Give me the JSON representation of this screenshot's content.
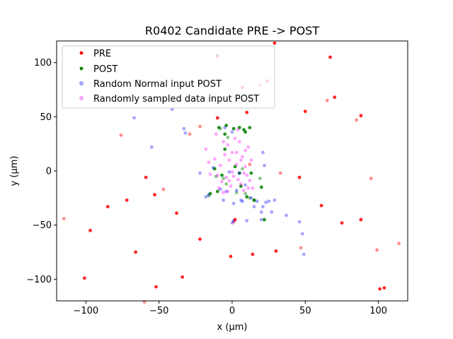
{
  "chart_data": {
    "type": "scatter",
    "title": "R0402 Candidate PRE -> POST",
    "xlabel": "x (µm)",
    "ylabel": "y (µm)",
    "xlim": [
      -120,
      120
    ],
    "ylim": [
      -120,
      120
    ],
    "xticks": [
      -100,
      -50,
      0,
      50,
      100
    ],
    "yticks": [
      -100,
      -50,
      0,
      50,
      100
    ],
    "xtick_labels": [
      "−100",
      "−50",
      "0",
      "50",
      "100"
    ],
    "ytick_labels": [
      "−100",
      "−50",
      "0",
      "50",
      "100"
    ],
    "grid": false,
    "legend_position": "top-left",
    "series": [
      {
        "name": "PRE",
        "color": "#ff0000",
        "points": [
          [
            -115,
            -44
          ],
          [
            -101,
            -99
          ],
          [
            -59,
            -6
          ],
          [
            -60,
            -121
          ],
          [
            -52,
            -107
          ],
          [
            -53,
            -22
          ],
          [
            -47,
            -17
          ],
          [
            -66,
            -75
          ],
          [
            -22,
            -63
          ],
          [
            -22,
            41
          ],
          [
            -10,
            49
          ],
          [
            -1,
            -79
          ],
          [
            1,
            -47
          ],
          [
            2,
            -45
          ],
          [
            10,
            54
          ],
          [
            12,
            6
          ],
          [
            14,
            -77
          ],
          [
            29,
            118
          ],
          [
            33,
            -2
          ],
          [
            46,
            -6
          ],
          [
            61,
            -32
          ],
          [
            65,
            65
          ],
          [
            70,
            68
          ],
          [
            75,
            -48
          ],
          [
            85,
            47
          ],
          [
            88,
            51
          ],
          [
            88,
            -45
          ],
          [
            99,
            -73
          ],
          [
            101,
            -109
          ],
          [
            104,
            -108
          ],
          [
            114,
            -67
          ],
          [
            -72,
            -27
          ],
          [
            -85,
            -33
          ],
          [
            -76,
            33
          ],
          [
            -38,
            -39
          ],
          [
            -34,
            -98
          ],
          [
            -29,
            34
          ],
          [
            -10,
            106
          ],
          [
            7,
            77
          ],
          [
            19,
            79
          ],
          [
            24,
            83
          ],
          [
            30,
            -74
          ],
          [
            47,
            -71
          ],
          [
            50,
            55
          ],
          [
            67,
            105
          ],
          [
            95,
            -7
          ],
          [
            -97,
            -55
          ]
        ]
      },
      {
        "name": "POST",
        "color": "#008000",
        "points": [
          [
            -16,
            -23
          ],
          [
            -15,
            -21
          ],
          [
            -10,
            -19
          ],
          [
            -11,
            -5
          ],
          [
            -12,
            2
          ],
          [
            -9,
            40
          ],
          [
            -6,
            -7
          ],
          [
            -5,
            34
          ],
          [
            -4,
            42
          ],
          [
            -3,
            31
          ],
          [
            1,
            39
          ],
          [
            2,
            4
          ],
          [
            3,
            -20
          ],
          [
            5,
            -2
          ],
          [
            5,
            40
          ],
          [
            7,
            2
          ],
          [
            8,
            38
          ],
          [
            9,
            36
          ],
          [
            9,
            -21
          ],
          [
            10,
            -24
          ],
          [
            12,
            40
          ],
          [
            12,
            -25
          ],
          [
            15,
            -27
          ],
          [
            15,
            -27
          ],
          [
            19,
            -7
          ],
          [
            20,
            -15
          ],
          [
            22,
            -45
          ],
          [
            -8,
            39
          ],
          [
            -5,
            20
          ],
          [
            -7,
            -4
          ],
          [
            -4,
            -12
          ],
          [
            6,
            -14
          ],
          [
            13,
            -2
          ]
        ]
      },
      {
        "name": "Random Normal input POST",
        "color": "#0000ff",
        "points": [
          [
            -55,
            22
          ],
          [
            -41,
            57
          ],
          [
            -33,
            39
          ],
          [
            -32,
            35
          ],
          [
            -22,
            -2
          ],
          [
            -18,
            -24
          ],
          [
            -16,
            -22
          ],
          [
            -13,
            3
          ],
          [
            -10,
            107
          ],
          [
            -8,
            -17
          ],
          [
            -6,
            -27
          ],
          [
            -4,
            -19
          ],
          [
            -2,
            -1
          ],
          [
            0,
            -48
          ],
          [
            1,
            -30
          ],
          [
            1,
            -46
          ],
          [
            3,
            -18
          ],
          [
            5,
            -2
          ],
          [
            6,
            -27
          ],
          [
            7,
            -28
          ],
          [
            9,
            -13
          ],
          [
            10,
            -46
          ],
          [
            13,
            -25
          ],
          [
            15,
            -33
          ],
          [
            17,
            -28
          ],
          [
            20,
            -38
          ],
          [
            20,
            -45
          ],
          [
            21,
            17
          ],
          [
            21,
            -33
          ],
          [
            22,
            5
          ],
          [
            23,
            -29
          ],
          [
            25,
            -28
          ],
          [
            27,
            -38
          ],
          [
            29,
            -27
          ],
          [
            37,
            -41
          ],
          [
            46,
            -47
          ],
          [
            48,
            -58
          ],
          [
            49,
            -77
          ],
          [
            -67,
            49
          ],
          [
            -5,
            40
          ],
          [
            0,
            36
          ]
        ]
      },
      {
        "name": "Randomly sampled data input POST",
        "color": "#ff00ff",
        "points": [
          [
            -18,
            20
          ],
          [
            -16,
            8
          ],
          [
            -15,
            -3
          ],
          [
            -12,
            11
          ],
          [
            -10,
            -4
          ],
          [
            -8,
            5
          ],
          [
            -7,
            -10
          ],
          [
            -6,
            -20
          ],
          [
            -5,
            15
          ],
          [
            -4,
            -6
          ],
          [
            -3,
            24
          ],
          [
            -2,
            10
          ],
          [
            -1,
            -14
          ],
          [
            0,
            17
          ],
          [
            1,
            -5
          ],
          [
            2,
            30
          ],
          [
            3,
            6
          ],
          [
            4,
            -8
          ],
          [
            5,
            27
          ],
          [
            6,
            -12
          ],
          [
            7,
            13
          ],
          [
            8,
            -18
          ],
          [
            9,
            19
          ],
          [
            10,
            -4
          ],
          [
            11,
            22
          ],
          [
            12,
            -9
          ],
          [
            13,
            10
          ],
          [
            14,
            -16
          ],
          [
            -9,
            -16
          ],
          [
            -6,
            27
          ],
          [
            -2,
            -9
          ],
          [
            3,
            17
          ],
          [
            6,
            10
          ],
          [
            8,
            -2
          ],
          [
            -11,
            34
          ],
          [
            0,
            -1
          ],
          [
            4,
            38
          ],
          [
            9,
            4
          ],
          [
            -3,
            -19
          ],
          [
            11,
            -16
          ]
        ]
      }
    ]
  }
}
